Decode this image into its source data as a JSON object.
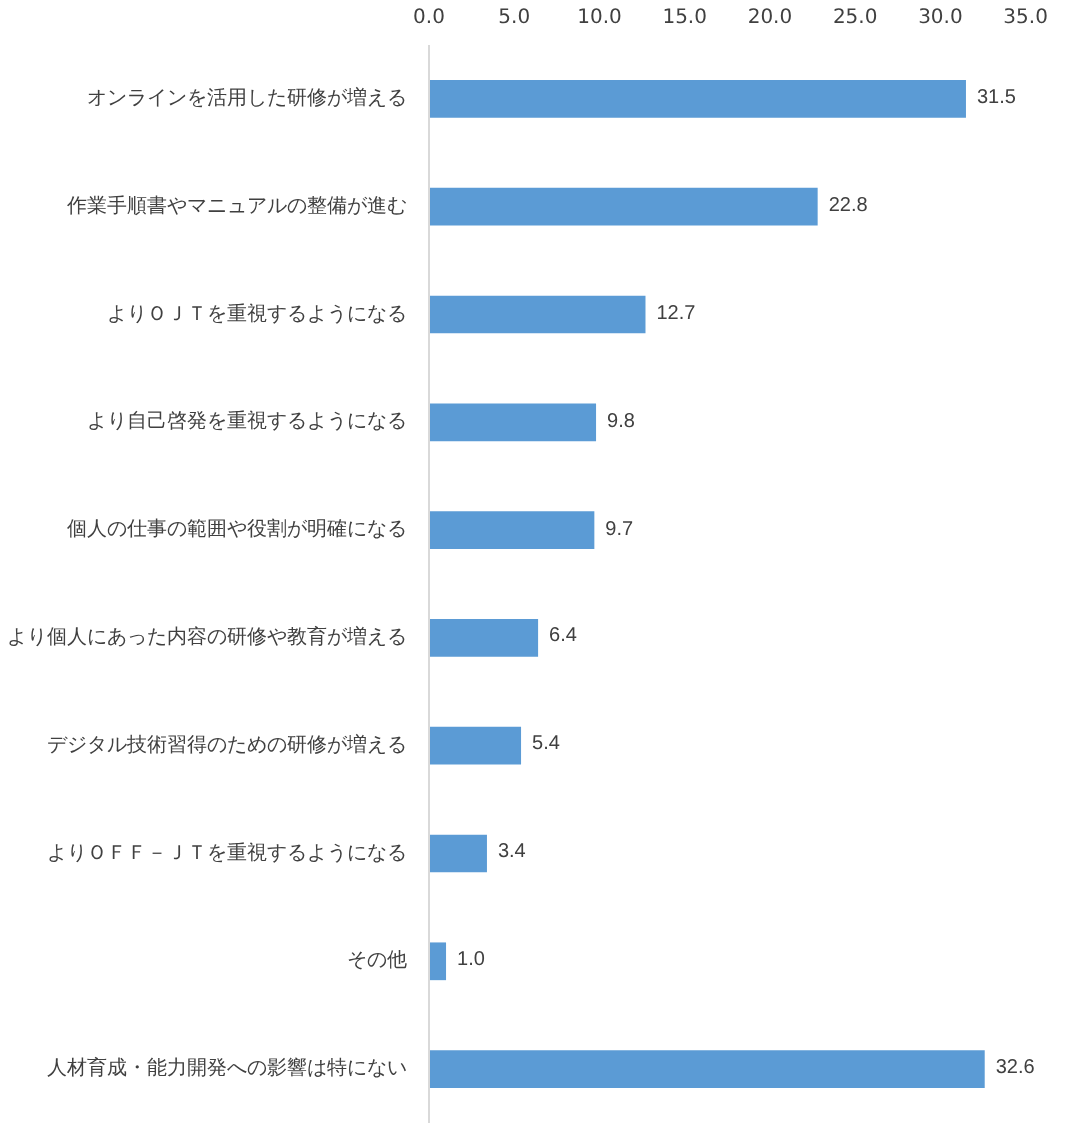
{
  "chart_data": {
    "type": "bar",
    "orientation": "horizontal",
    "categories": [
      "オンラインを活用した研修が増える",
      "作業手順書やマニュアルの整備が進む",
      "よりＯＪＴを重視するようになる",
      "より自己啓発を重視するようになる",
      "個人の仕事の範囲や役割が明確になる",
      "より個人にあった内容の研修や教育が増える",
      "デジタル技術習得のための研修が増える",
      "よりＯＦＦ－ＪＴを重視するようになる",
      "その他",
      "人材育成・能力開発への影響は特にない"
    ],
    "values": [
      31.5,
      22.8,
      12.7,
      9.8,
      9.7,
      6.4,
      5.4,
      3.4,
      1.0,
      32.6
    ],
    "color": "#5b9bd5",
    "xlim": [
      0,
      35
    ],
    "xticks": [
      {
        "value": 0,
        "label": "0.0"
      },
      {
        "value": 5,
        "label": "5.0"
      },
      {
        "value": 10,
        "label": "10.0"
      },
      {
        "value": 15,
        "label": "15.0"
      },
      {
        "value": 20,
        "label": "20.0"
      },
      {
        "value": 25,
        "label": "25.0"
      },
      {
        "value": 30,
        "label": "30.0"
      },
      {
        "value": 35,
        "label": "35.0"
      }
    ],
    "grid": false,
    "value_labels": [
      "31.5",
      "22.8",
      "12.7",
      "9.8",
      "9.7",
      "6.4",
      "5.4",
      "3.4",
      "1.0",
      "32.6"
    ]
  }
}
